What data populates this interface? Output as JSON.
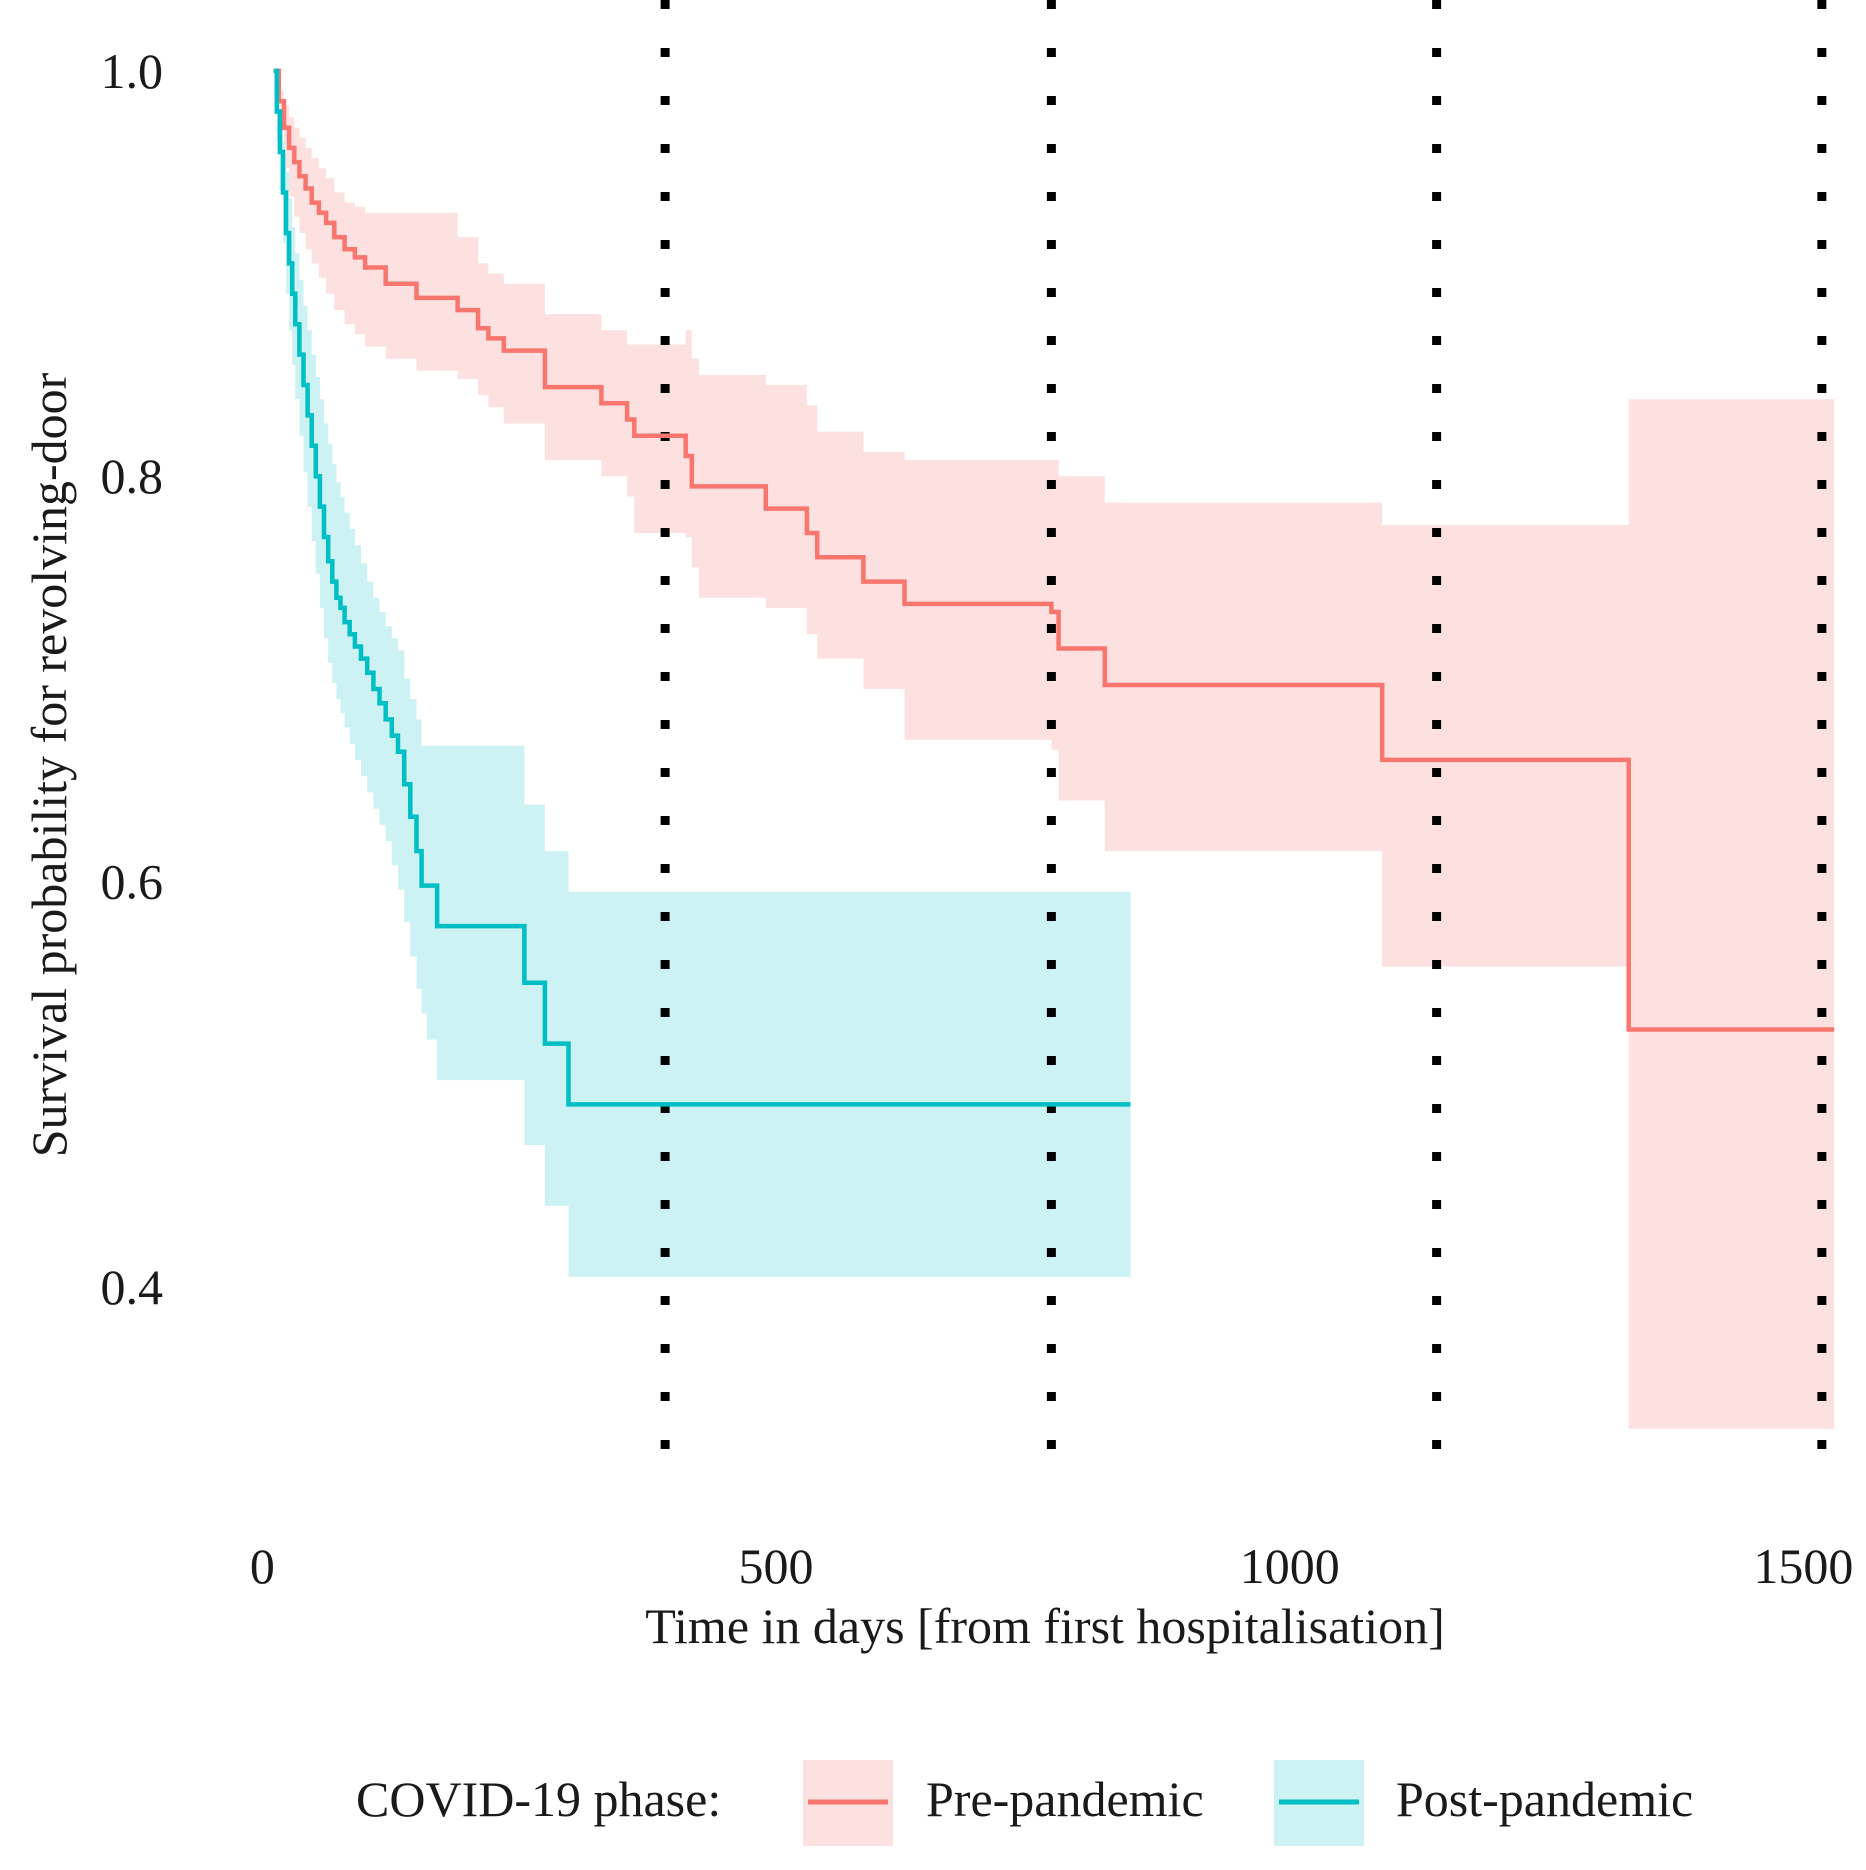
{
  "chart_data": {
    "type": "line",
    "subtype": "kaplan-meier",
    "title": "",
    "xlabel": "Time in days [from first hospitalisation]",
    "ylabel": "Survival probability for revolving-door",
    "xlim": [
      -15,
      1560
    ],
    "ylim": [
      0.28,
      1.035
    ],
    "x_ticks": [
      0,
      500,
      1000,
      1500
    ],
    "x_tick_labels": [
      "0",
      "500",
      "1000",
      "1500"
    ],
    "y_ticks": [
      0.4,
      0.6,
      0.8,
      1.0
    ],
    "y_tick_labels": [
      "0.4",
      "0.6",
      "0.8",
      "1.0"
    ],
    "grid": false,
    "reference_lines": {
      "style": "dotted",
      "color": "#000000",
      "x": [
        392,
        768,
        1143,
        1518
      ],
      "y_range": [
        0.31,
        1.035
      ]
    },
    "legend": {
      "title": "COVID-19 phase:",
      "position": "bottom"
    },
    "series": [
      {
        "name": "Pre-pandemic",
        "color": "#F8766D",
        "band_color": "#FDE1E0",
        "x": [
          11,
          16,
          21,
          26,
          31,
          36,
          42,
          48,
          55,
          62,
          70,
          80,
          90,
          100,
          120,
          150,
          190,
          210,
          220,
          235,
          260,
          275,
          330,
          355,
          362,
          412,
          418,
          425,
          490,
          530,
          540,
          557,
          585,
          625,
          768,
          775,
          820,
          1090,
          1330,
          1530
        ],
        "values": [
          1.0,
          0.985,
          0.972,
          0.962,
          0.955,
          0.948,
          0.942,
          0.935,
          0.93,
          0.925,
          0.918,
          0.912,
          0.908,
          0.903,
          0.895,
          0.888,
          0.882,
          0.873,
          0.868,
          0.862,
          0.862,
          0.844,
          0.836,
          0.828,
          0.82,
          0.81,
          0.795,
          0.795,
          0.784,
          0.772,
          0.76,
          0.76,
          0.748,
          0.737,
          0.733,
          0.715,
          0.697,
          0.66,
          0.527,
          0.527
        ],
        "lower": [
          1.0,
          0.97,
          0.952,
          0.938,
          0.928,
          0.92,
          0.912,
          0.905,
          0.898,
          0.89,
          0.882,
          0.875,
          0.87,
          0.864,
          0.858,
          0.852,
          0.848,
          0.84,
          0.834,
          0.826,
          0.826,
          0.808,
          0.8,
          0.79,
          0.772,
          0.77,
          0.755,
          0.74,
          0.735,
          0.722,
          0.71,
          0.71,
          0.695,
          0.67,
          0.665,
          0.64,
          0.615,
          0.558,
          0.33,
          0.33
        ],
        "upper": [
          1.0,
          0.99,
          0.983,
          0.977,
          0.972,
          0.967,
          0.962,
          0.957,
          0.952,
          0.947,
          0.94,
          0.935,
          0.933,
          0.93,
          0.93,
          0.93,
          0.918,
          0.905,
          0.9,
          0.895,
          0.895,
          0.88,
          0.872,
          0.865,
          0.865,
          0.872,
          0.858,
          0.85,
          0.845,
          0.835,
          0.822,
          0.822,
          0.812,
          0.808,
          0.808,
          0.8,
          0.787,
          0.776,
          0.838,
          0.838
        ]
      },
      {
        "name": "Post-pandemic",
        "color": "#00BFC4",
        "band_color": "#CCF2F3",
        "x": [
          11,
          14,
          17,
          20,
          23,
          26,
          29,
          32,
          36,
          40,
          44,
          48,
          52,
          56,
          60,
          64,
          68,
          72,
          76,
          80,
          85,
          90,
          96,
          102,
          108,
          114,
          120,
          126,
          132,
          138,
          144,
          150,
          155,
          160,
          170,
          185,
          255,
          262,
          275,
          282,
          298,
          301,
          845
        ],
        "values": [
          1.0,
          0.98,
          0.96,
          0.94,
          0.92,
          0.905,
          0.89,
          0.875,
          0.86,
          0.845,
          0.83,
          0.815,
          0.8,
          0.785,
          0.77,
          0.758,
          0.748,
          0.74,
          0.735,
          0.728,
          0.722,
          0.716,
          0.71,
          0.703,
          0.695,
          0.688,
          0.68,
          0.672,
          0.664,
          0.648,
          0.632,
          0.615,
          0.598,
          0.598,
          0.578,
          0.578,
          0.55,
          0.55,
          0.52,
          0.52,
          0.49,
          0.49,
          0.49
        ],
        "lower": [
          1.0,
          0.965,
          0.94,
          0.915,
          0.89,
          0.872,
          0.855,
          0.838,
          0.82,
          0.802,
          0.785,
          0.768,
          0.752,
          0.735,
          0.72,
          0.708,
          0.698,
          0.69,
          0.683,
          0.676,
          0.668,
          0.66,
          0.652,
          0.644,
          0.636,
          0.628,
          0.62,
          0.608,
          0.596,
          0.58,
          0.563,
          0.547,
          0.535,
          0.522,
          0.502,
          0.502,
          0.47,
          0.47,
          0.44,
          0.44,
          0.405,
          0.405,
          0.405
        ],
        "upper": [
          1.0,
          0.99,
          0.98,
          0.965,
          0.95,
          0.937,
          0.923,
          0.91,
          0.897,
          0.884,
          0.872,
          0.86,
          0.849,
          0.838,
          0.826,
          0.816,
          0.806,
          0.797,
          0.79,
          0.782,
          0.774,
          0.766,
          0.757,
          0.748,
          0.74,
          0.733,
          0.726,
          0.72,
          0.714,
          0.7,
          0.69,
          0.68,
          0.667,
          0.667,
          0.667,
          0.667,
          0.638,
          0.638,
          0.615,
          0.615,
          0.595,
          0.595,
          0.595
        ]
      }
    ]
  }
}
